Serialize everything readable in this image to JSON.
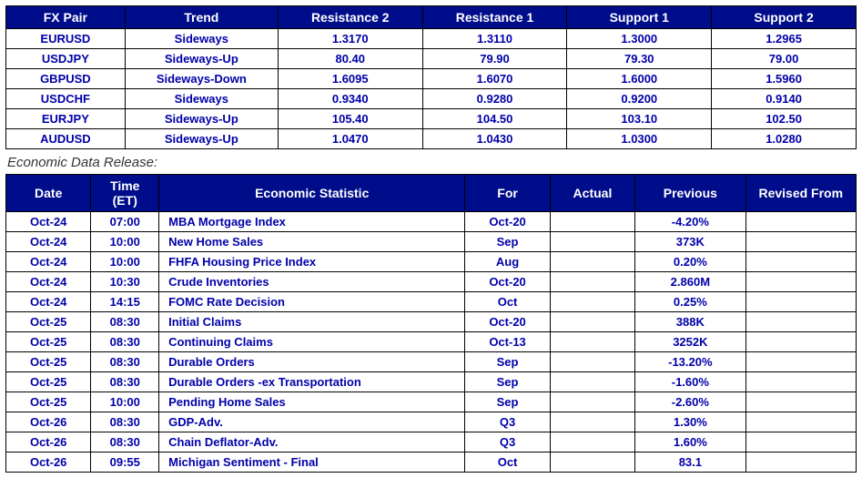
{
  "fx_table": {
    "headers": [
      "FX Pair",
      "Trend",
      "Resistance 2",
      "Resistance 1",
      "Support 1",
      "Support 2"
    ],
    "rows": [
      [
        "EURUSD",
        "Sideways",
        "1.3170",
        "1.3110",
        "1.3000",
        "1.2965"
      ],
      [
        "USDJPY",
        "Sideways-Up",
        "80.40",
        "79.90",
        "79.30",
        "79.00"
      ],
      [
        "GBPUSD",
        "Sideways-Down",
        "1.6095",
        "1.6070",
        "1.6000",
        "1.5960"
      ],
      [
        "USDCHF",
        "Sideways",
        "0.9340",
        "0.9280",
        "0.9200",
        "0.9140"
      ],
      [
        "EURJPY",
        "Sideways-Up",
        "105.40",
        "104.50",
        "103.10",
        "102.50"
      ],
      [
        "AUDUSD",
        "Sideways-Up",
        "1.0470",
        "1.0430",
        "1.0300",
        "1.0280"
      ]
    ]
  },
  "section_label": "Economic Data Release:",
  "econ_table": {
    "headers": [
      "Date",
      "Time (ET)",
      "Economic Statistic",
      "For",
      "Actual",
      "Previous",
      "Revised From"
    ],
    "rows": [
      [
        "Oct-24",
        "07:00",
        "MBA Mortgage Index",
        "Oct-20",
        "",
        "-4.20%",
        ""
      ],
      [
        "Oct-24",
        "10:00",
        "New Home Sales",
        "Sep",
        "",
        "373K",
        ""
      ],
      [
        "Oct-24",
        "10:00",
        "FHFA Housing Price Index",
        "Aug",
        "",
        "0.20%",
        ""
      ],
      [
        "Oct-24",
        "10:30",
        "Crude Inventories",
        "Oct-20",
        "",
        "2.860M",
        ""
      ],
      [
        "Oct-24",
        "14:15",
        "FOMC Rate Decision",
        "Oct",
        "",
        "0.25%",
        ""
      ],
      [
        "Oct-25",
        "08:30",
        "Initial Claims",
        "Oct-20",
        "",
        "388K",
        ""
      ],
      [
        "Oct-25",
        "08:30",
        "Continuing Claims",
        "Oct-13",
        "",
        "3252K",
        ""
      ],
      [
        "Oct-25",
        "08:30",
        "Durable Orders",
        "Sep",
        "",
        "-13.20%",
        ""
      ],
      [
        "Oct-25",
        "08:30",
        "Durable Orders -ex Transportation",
        "Sep",
        "",
        "-1.60%",
        ""
      ],
      [
        "Oct-25",
        "10:00",
        "Pending Home Sales",
        "Sep",
        "",
        "-2.60%",
        ""
      ],
      [
        "Oct-26",
        "08:30",
        "GDP-Adv.",
        "Q3",
        "",
        "1.30%",
        ""
      ],
      [
        "Oct-26",
        "08:30",
        "Chain Deflator-Adv.",
        "Q3",
        "",
        "1.60%",
        ""
      ],
      [
        "Oct-26",
        "09:55",
        "Michigan Sentiment - Final",
        "Oct",
        "",
        "83.1",
        ""
      ]
    ]
  },
  "colors": {
    "header_bg": "#000d8a",
    "header_fg": "#ffffff",
    "cell_fg": "#0000aa",
    "border": "#000000",
    "bg": "#ffffff"
  }
}
